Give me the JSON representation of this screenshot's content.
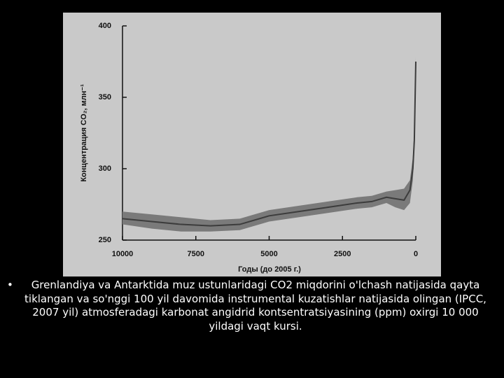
{
  "chart_data": {
    "type": "line",
    "xlabel": "Годы (до 2005 г.)",
    "ylabel": "Концентрация CO₂, млн⁻¹",
    "x": [
      10000,
      9000,
      8000,
      7000,
      6000,
      5500,
      5000,
      4000,
      3000,
      2000,
      1500,
      1000,
      700,
      400,
      200,
      100,
      50,
      0
    ],
    "series": [
      {
        "color": "#3c3c3c",
        "values": [
          265,
          263,
          261,
          260,
          261,
          264,
          267,
          270,
          273,
          276,
          277,
          280,
          279,
          278,
          285,
          300,
          320,
          375
        ]
      }
    ],
    "band": {
      "color": "#7a7a7a",
      "lower": [
        261,
        258,
        256,
        256,
        257,
        260,
        263,
        266,
        269,
        272,
        273,
        276,
        273,
        271,
        276,
        292,
        313,
        372
      ],
      "upper": [
        270,
        268,
        266,
        264,
        265,
        268,
        271,
        274,
        277,
        280,
        281,
        284,
        285,
        286,
        292,
        308,
        328,
        378
      ]
    },
    "xlim": [
      10000,
      0
    ],
    "xticks": [
      10000,
      7500,
      5000,
      2500,
      0
    ],
    "ylim": [
      250,
      400
    ],
    "yticks": [
      250,
      300,
      350,
      400
    ]
  },
  "caption": "Grenlandiya va Antarktida muz ustunlaridagi CO2 miqdorini o'lchash natijasida qayta tiklangan va so'nggi 100 yil davomida instrumental kuzatishlar natijasida olingan (IPCC, 2007 yil) atmosferadagi karbonat angidrid kontsentratsiyasining (ppm) oxirgi 10 000 yildagi vaqt kursi."
}
